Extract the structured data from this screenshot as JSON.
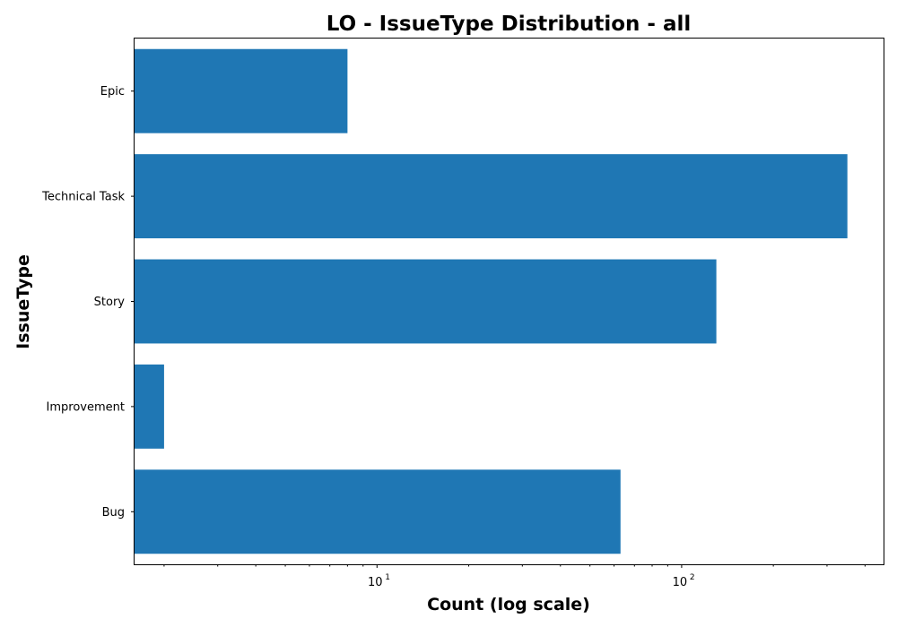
{
  "chart_data": {
    "type": "bar",
    "orientation": "horizontal",
    "title": "LO - IssueType Distribution - all",
    "xlabel": "Count (log scale)",
    "ylabel": "IssueType",
    "x_scale": "log",
    "xlim": [
      1.6,
      460
    ],
    "x_ticks": [
      {
        "value": 10,
        "base": "10",
        "exp": "1"
      },
      {
        "value": 100,
        "base": "10",
        "exp": "2"
      }
    ],
    "categories": [
      "Epic",
      "Technical Task",
      "Story",
      "Improvement",
      "Bug"
    ],
    "values": [
      8,
      350,
      130,
      2,
      63
    ],
    "bar_color": "#1f77b4",
    "grid": false,
    "legend": "none"
  }
}
